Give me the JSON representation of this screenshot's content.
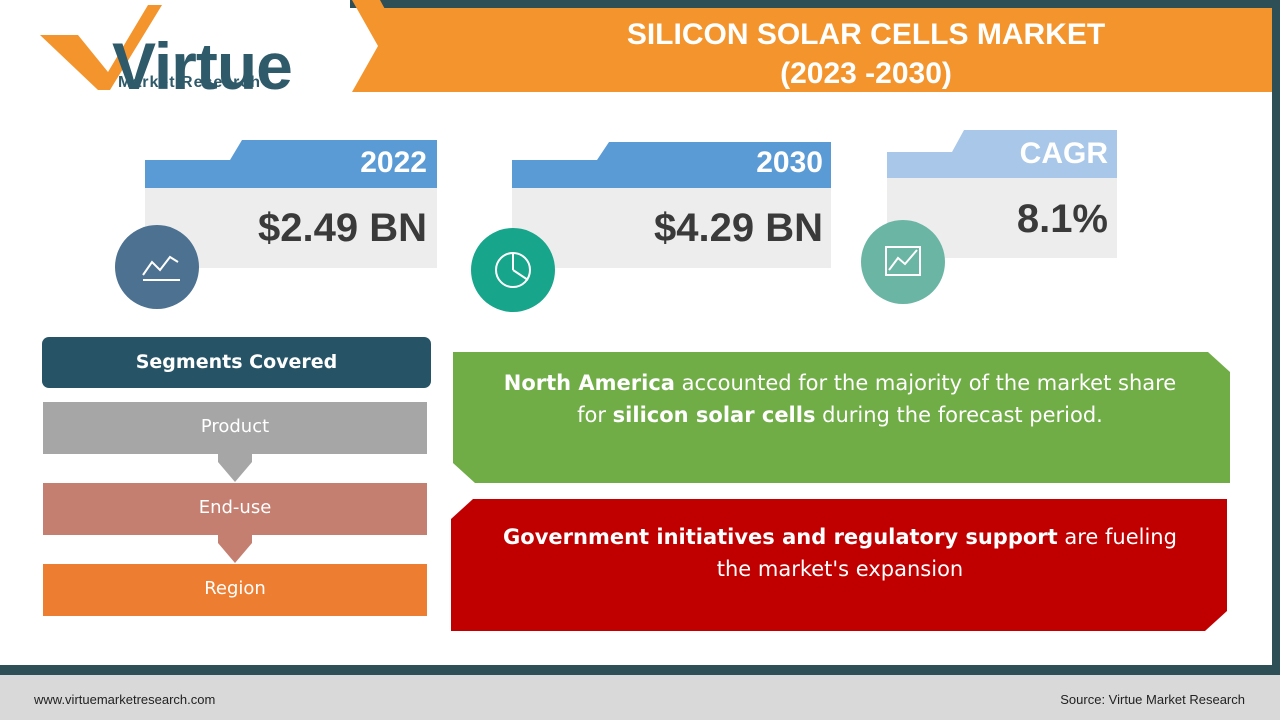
{
  "logo": {
    "name": "Virtue",
    "tagline": "Market Research"
  },
  "header": {
    "title": "SILICON SOLAR CELLS MARKET",
    "subtitle": "(2023 -2030)"
  },
  "stats": [
    {
      "label": "2022",
      "value": "$2.49 BN"
    },
    {
      "label": "2030",
      "value": "$4.29 BN"
    },
    {
      "label": "CAGR",
      "value": "8.1%"
    }
  ],
  "segments": {
    "title": "Segments Covered",
    "items": [
      "Product",
      "End-use",
      "Region"
    ]
  },
  "insights": [
    {
      "parts": [
        {
          "text": "North America",
          "bold": true
        },
        {
          "text": " accounted for the majority of the market share for ",
          "bold": false
        },
        {
          "text": "silicon solar cells",
          "bold": true
        },
        {
          "text": " during the forecast period.",
          "bold": false
        }
      ]
    },
    {
      "parts": [
        {
          "text": "Government initiatives and regulatory support",
          "bold": true
        },
        {
          "text": " are fueling the market's expansion",
          "bold": false
        }
      ]
    }
  ],
  "footer": {
    "website": "www.virtuemarketresearch.com",
    "source": "Source: Virtue Market Research"
  }
}
